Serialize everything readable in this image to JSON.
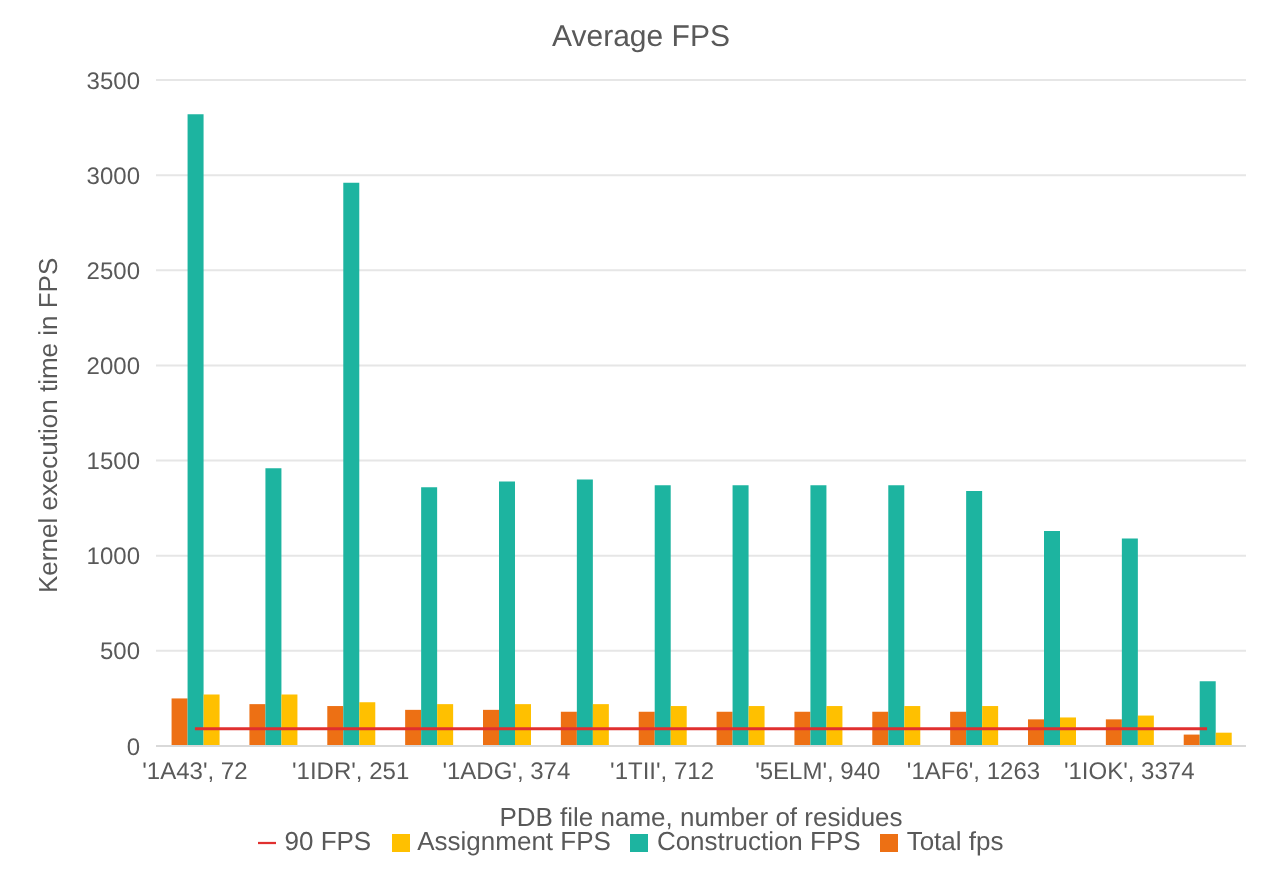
{
  "chart_data": {
    "type": "bar",
    "title": "Average FPS",
    "xlabel": "PDB file name, number of residues",
    "ylabel": "Kernel execution time in FPS",
    "categories": [
      "'1A43', 72",
      null,
      "'1IDR', 251",
      null,
      "'1ADG', 374",
      null,
      "'1TII', 712",
      null,
      "'5ELM', 940",
      null,
      "'1AF6', 1263",
      null,
      "'1IOK', 3374",
      null
    ],
    "series": [
      {
        "name": "Total fps",
        "color": "#ed7014",
        "values": [
          250,
          220,
          210,
          190,
          190,
          180,
          180,
          180,
          180,
          180,
          180,
          140,
          140,
          60
        ]
      },
      {
        "name": "Construction FPS",
        "color": "#1db4a0",
        "values": [
          3320,
          1460,
          2960,
          1360,
          1390,
          1400,
          1370,
          1370,
          1370,
          1370,
          1340,
          1130,
          1090,
          340
        ]
      },
      {
        "name": "Assignment FPS",
        "color": "#ffc000",
        "values": [
          270,
          270,
          230,
          220,
          220,
          220,
          210,
          210,
          210,
          210,
          210,
          150,
          160,
          70
        ]
      },
      {
        "name": "90 FPS",
        "type": "line",
        "color": "#e0302f",
        "marker": "none",
        "values": [
          90,
          90,
          90,
          90,
          90,
          90,
          90,
          90,
          90,
          90,
          90,
          90,
          90,
          90
        ]
      }
    ],
    "ylim": [
      0,
      3500
    ],
    "yticks": [
      0,
      500,
      1000,
      1500,
      2000,
      2500,
      3000,
      3500
    ],
    "grid": "y",
    "legend": "bottom"
  }
}
